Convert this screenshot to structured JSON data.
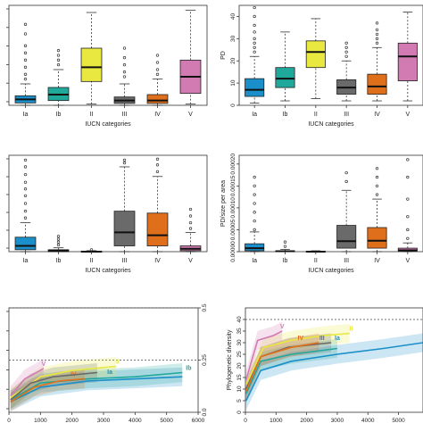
{
  "colors": {
    "Ia": "#1a8fc9",
    "Ib": "#20a89a",
    "II": "#e8e840",
    "III": "#6a6a6a",
    "IV": "#e06f1c",
    "V": "#d27bb3"
  },
  "chart_data": [
    {
      "type": "box",
      "panel": "top-left",
      "xlabel": "IUCN categories",
      "ylabel": "",
      "ylim": [
        0,
        42
      ],
      "yticks": [],
      "categories": [
        "Ia",
        "Ib",
        "II",
        "III",
        "IV",
        "V"
      ],
      "boxes": [
        {
          "min": 0,
          "q1": 1,
          "median": 2.5,
          "q3": 4,
          "max": 9,
          "outliers": [
            11,
            13,
            16,
            19,
            22,
            25,
            30,
            34
          ]
        },
        {
          "min": 0,
          "q1": 2,
          "median": 4.5,
          "q3": 7.5,
          "max": 15,
          "outliers": [
            17,
            19,
            21,
            23
          ]
        },
        {
          "min": 0.5,
          "q1": 10,
          "median": 16,
          "q3": 24,
          "max": 39,
          "outliers": []
        },
        {
          "min": 0,
          "q1": 0.8,
          "median": 2,
          "q3": 3.5,
          "max": 9,
          "outliers": [
            12,
            14,
            17,
            20,
            24
          ]
        },
        {
          "min": 0,
          "q1": 0.8,
          "median": 2,
          "q3": 4.5,
          "max": 11,
          "outliers": [
            13,
            15,
            18,
            21
          ]
        },
        {
          "min": 0.5,
          "q1": 5,
          "median": 12,
          "q3": 19,
          "max": 40,
          "outliers": []
        }
      ]
    },
    {
      "type": "box",
      "panel": "top-right",
      "xlabel": "IUCN categories",
      "ylabel": "PD",
      "ylim": [
        0,
        45
      ],
      "yticks": [
        0,
        10,
        20,
        30,
        40
      ],
      "categories": [
        "Ia",
        "Ib",
        "II",
        "III",
        "IV",
        "V"
      ],
      "boxes": [
        {
          "min": 1,
          "q1": 4,
          "median": 7,
          "q3": 12,
          "max": 22,
          "outliers": [
            24,
            26,
            28,
            30,
            33,
            36,
            40,
            44
          ]
        },
        {
          "min": 2,
          "q1": 8,
          "median": 12,
          "q3": 17,
          "max": 33,
          "outliers": []
        },
        {
          "min": 3,
          "q1": 17,
          "median": 24,
          "q3": 29,
          "max": 39,
          "outliers": []
        },
        {
          "min": 2,
          "q1": 5,
          "median": 8,
          "q3": 11.5,
          "max": 20,
          "outliers": [
            22,
            24,
            26,
            28
          ]
        },
        {
          "min": 2,
          "q1": 5,
          "median": 8.5,
          "q3": 14,
          "max": 26,
          "outliers": [
            28,
            30,
            32,
            34,
            37
          ]
        },
        {
          "min": 2,
          "q1": 11,
          "median": 22,
          "q3": 28,
          "max": 42,
          "outliers": []
        }
      ]
    },
    {
      "type": "box",
      "panel": "middle-left",
      "xlabel": "IUCN categories",
      "ylabel": "",
      "ylim": [
        0,
        1
      ],
      "yticks": [],
      "categories": [
        "Ia",
        "Ib",
        "II",
        "III",
        "IV",
        "V"
      ],
      "boxes": [
        {
          "min": 0,
          "q1": 0.02,
          "median": 0.06,
          "q3": 0.15,
          "max": 0.3,
          "outliers": [
            0.35,
            0.42,
            0.5,
            0.58,
            0.65,
            0.72,
            0.8,
            0.88,
            0.95
          ]
        },
        {
          "min": 0,
          "q1": 0,
          "median": 0.01,
          "q3": 0.02,
          "max": 0.04,
          "outliers": [
            0.07,
            0.1,
            0.13,
            0.16
          ]
        },
        {
          "min": 0,
          "q1": 0,
          "median": 0,
          "q3": 0.005,
          "max": 0.01,
          "outliers": [
            0.02
          ]
        },
        {
          "min": 0,
          "q1": 0.06,
          "median": 0.2,
          "q3": 0.42,
          "max": 0.88,
          "outliers": [
            0.92,
            0.95
          ]
        },
        {
          "min": 0,
          "q1": 0.06,
          "median": 0.17,
          "q3": 0.4,
          "max": 0.78,
          "outliers": [
            0.83,
            0.9,
            0.96
          ]
        },
        {
          "min": 0,
          "q1": 0.01,
          "median": 0.03,
          "q3": 0.06,
          "max": 0.2,
          "outliers": [
            0.24,
            0.3,
            0.37,
            0.44
          ]
        }
      ]
    },
    {
      "type": "box",
      "panel": "middle-right",
      "xlabel": "IUCN categories",
      "ylabel": "PD/size per area",
      "ylim": [
        0,
        0.00022
      ],
      "yticks": [
        "0.00000",
        "0.00005",
        "0.00010",
        "0.00015",
        "0.00020"
      ],
      "ytick_values": [
        0,
        5e-05,
        0.0001,
        0.00015,
        0.0002
      ],
      "categories": [
        "Ia",
        "Ib",
        "II",
        "III",
        "IV",
        "V"
      ],
      "boxes": [
        {
          "min": 0,
          "q1": 2e-06,
          "median": 8e-06,
          "q3": 1.8e-05,
          "max": 4.5e-05,
          "outliers": [
            5e-05,
            7e-05,
            9e-05,
            0.00011,
            0.00013,
            0.00015,
            0.00017
          ]
        },
        {
          "min": 0,
          "q1": 0,
          "median": 1e-06,
          "q3": 2e-06,
          "max": 5e-06,
          "outliers": [
            1.2e-05,
            2.2e-05
          ]
        },
        {
          "min": 0,
          "q1": 0,
          "median": 0,
          "q3": 1e-06,
          "max": 2e-06,
          "outliers": []
        },
        {
          "min": 0,
          "q1": 8e-06,
          "median": 2.4e-05,
          "q3": 6e-05,
          "max": 0.00014,
          "outliers": [
            0.00016,
            0.00018
          ]
        },
        {
          "min": 0,
          "q1": 8e-06,
          "median": 2.5e-05,
          "q3": 5.5e-05,
          "max": 0.00012,
          "outliers": [
            0.00013,
            0.00015,
            0.00017,
            0.00019
          ]
        },
        {
          "min": 0,
          "q1": 1e-06,
          "median": 3e-06,
          "q3": 8e-06,
          "max": 2e-05,
          "outliers": [
            3e-05,
            5e-05,
            8e-05,
            0.00012,
            0.00017,
            0.00021
          ]
        }
      ]
    },
    {
      "type": "line",
      "panel": "bottom-left",
      "xlabel": "km²",
      "ylabel": "",
      "xlim": [
        0,
        6000
      ],
      "xticks": [
        0,
        1000,
        2000,
        3000,
        4000,
        5000,
        6000
      ],
      "ylim": [
        0,
        0.5
      ],
      "right_ticks": [
        "0.0",
        "0.25",
        "0.5"
      ],
      "right_tick_values": [
        0,
        0.25,
        0.5
      ],
      "hlines": [
        0.25,
        0.5
      ],
      "series": [
        {
          "name": "Ia",
          "curve": [
            [
              50,
              0.05
            ],
            [
              1000,
              0.12
            ],
            [
              2500,
              0.15
            ],
            [
              4000,
              0.16
            ],
            [
              5500,
              0.17
            ]
          ],
          "label_x": 3200
        },
        {
          "name": "Ib",
          "curve": [
            [
              50,
              0.06
            ],
            [
              1000,
              0.14
            ],
            [
              2500,
              0.16
            ],
            [
              4000,
              0.17
            ],
            [
              5500,
              0.19
            ]
          ],
          "label_x": 5700
        },
        {
          "name": "II",
          "curve": [
            [
              50,
              0.07
            ],
            [
              1000,
              0.17
            ],
            [
              2000,
              0.2
            ],
            [
              3400,
              0.22
            ]
          ],
          "label_x": 3450
        },
        {
          "name": "IV",
          "curve": [
            [
              50,
              0.05
            ],
            [
              800,
              0.12
            ],
            [
              1600,
              0.15
            ],
            [
              2400,
              0.16
            ]
          ],
          "label_x": 2050
        },
        {
          "name": "V",
          "curve": [
            [
              50,
              0.08
            ],
            [
              500,
              0.16
            ],
            [
              1100,
              0.21
            ]
          ],
          "label_x": 1100
        },
        {
          "name": "III",
          "curve": [
            [
              50,
              0.06
            ],
            [
              700,
              0.14
            ],
            [
              1400,
              0.17
            ],
            [
              2800,
              0.19
            ]
          ],
          "label_x": null
        }
      ]
    },
    {
      "type": "line",
      "panel": "bottom-right",
      "xlabel": "km²",
      "ylabel": "Phylogenetic diversity",
      "xlim": [
        0,
        5800
      ],
      "xticks": [
        0,
        1000,
        2000,
        3000,
        4000,
        5000
      ],
      "ylim": [
        0,
        45
      ],
      "yticks": [
        0,
        5,
        10,
        15,
        20,
        25,
        30,
        35,
        40
      ],
      "hlines": [
        40
      ],
      "series": [
        {
          "name": "Ia",
          "curve": [
            [
              20,
              5
            ],
            [
              500,
              18
            ],
            [
              1500,
              22
            ],
            [
              3000,
              25
            ],
            [
              4500,
              27.5
            ],
            [
              5800,
              30
            ]
          ],
          "label_x": 3000
        },
        {
          "name": "Ib",
          "curve": [
            [
              20,
              8
            ],
            [
              500,
              22
            ],
            [
              1500,
              25
            ],
            [
              3000,
              27.5
            ]
          ],
          "label_x": null
        },
        {
          "name": "II",
          "curve": [
            [
              20,
              12
            ],
            [
              600,
              28
            ],
            [
              1500,
              31
            ],
            [
              2500,
              33
            ],
            [
              3400,
              34
            ]
          ],
          "label_x": 3450
        },
        {
          "name": "III",
          "curve": [
            [
              20,
              10
            ],
            [
              500,
              24
            ],
            [
              1400,
              28
            ],
            [
              2800,
              30
            ]
          ],
          "label_x": 2500
        },
        {
          "name": "IV",
          "curve": [
            [
              20,
              9
            ],
            [
              500,
              24
            ],
            [
              1500,
              28
            ],
            [
              2400,
              30
            ]
          ],
          "label_x": 1800
        },
        {
          "name": "V",
          "curve": [
            [
              20,
              14
            ],
            [
              400,
              31
            ],
            [
              900,
              33
            ],
            [
              1200,
              35
            ]
          ],
          "label_x": 1200
        }
      ]
    }
  ]
}
